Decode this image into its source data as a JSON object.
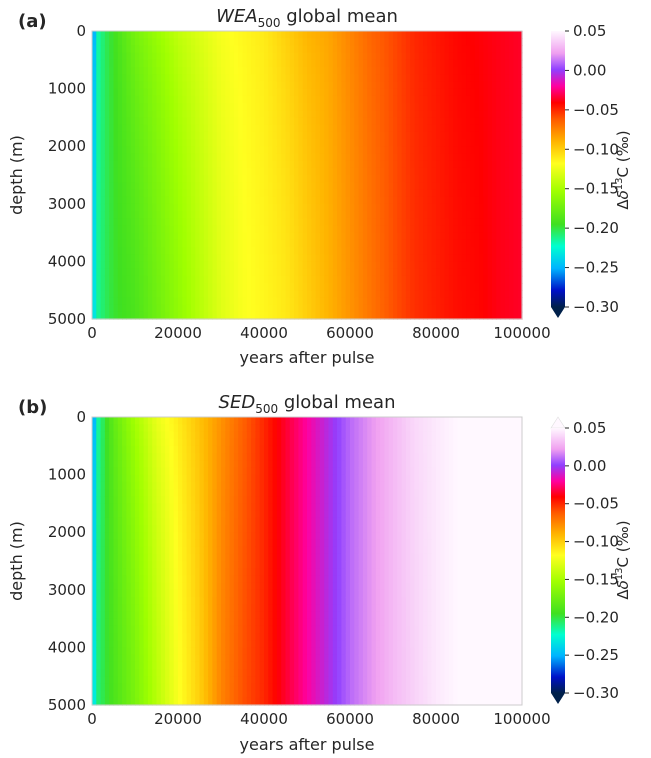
{
  "chart_data": [
    {
      "type": "heatmap",
      "panel_label": "(a)",
      "title_italic": "WEA",
      "title_subscript": "500",
      "title_rest": " global mean",
      "xlabel": "years after pulse",
      "ylabel": "depth (m)",
      "xlim": [
        0,
        100000
      ],
      "ylim": [
        5000,
        0
      ],
      "x_ticks": [
        "0",
        "20000",
        "40000",
        "60000",
        "80000",
        "100000"
      ],
      "y_ticks": [
        "0",
        "1000",
        "2000",
        "3000",
        "4000",
        "5000"
      ],
      "grid": false,
      "colorbar": {
        "label": "Δδ¹³C (‰)",
        "label_prefix": "Δ",
        "label_delta": "δ",
        "label_sup": "13",
        "label_suffix": "C (‰)",
        "vmin": -0.3,
        "vmax": 0.05,
        "ticks": [
          "0.05",
          "0.00",
          "−0.05",
          "−0.10",
          "−0.15",
          "−0.20",
          "−0.25",
          "−0.30"
        ],
        "extend": "min"
      },
      "field": {
        "description_values": "anomaly at surface (depth 0) and bottom (depth 5000) vs time",
        "x": [
          0,
          1000,
          3000,
          5000,
          10000,
          15000,
          20000,
          25000,
          30000,
          35000,
          40000,
          45000,
          50000,
          55000,
          60000,
          65000,
          70000,
          75000,
          80000,
          85000,
          90000,
          95000,
          100000
        ],
        "surface": [
          -0.28,
          -0.22,
          -0.205,
          -0.195,
          -0.17,
          -0.155,
          -0.14,
          -0.13,
          -0.12,
          -0.115,
          -0.11,
          -0.1,
          -0.09,
          -0.085,
          -0.075,
          -0.065,
          -0.058,
          -0.05,
          -0.046,
          -0.042,
          -0.04,
          -0.038,
          -0.036
        ],
        "bottom": [
          -0.25,
          -0.215,
          -0.205,
          -0.198,
          -0.19,
          -0.175,
          -0.16,
          -0.145,
          -0.13,
          -0.12,
          -0.115,
          -0.11,
          -0.1,
          -0.09,
          -0.08,
          -0.07,
          -0.06,
          -0.052,
          -0.048,
          -0.044,
          -0.042,
          -0.038,
          -0.036
        ]
      }
    },
    {
      "type": "heatmap",
      "panel_label": "(b)",
      "title_italic": "SED",
      "title_subscript": "500",
      "title_rest": " global mean",
      "xlabel": "years after pulse",
      "ylabel": "depth (m)",
      "xlim": [
        0,
        100000
      ],
      "ylim": [
        5000,
        0
      ],
      "x_ticks": [
        "0",
        "20000",
        "40000",
        "60000",
        "80000",
        "100000"
      ],
      "y_ticks": [
        "0",
        "1000",
        "2000",
        "3000",
        "4000",
        "5000"
      ],
      "grid": false,
      "colorbar": {
        "label": "Δδ¹³C (‰)",
        "label_prefix": "Δ",
        "label_delta": "δ",
        "label_sup": "13",
        "label_suffix": "C (‰)",
        "vmin": -0.3,
        "vmax": 0.05,
        "ticks": [
          "0.05",
          "0.00",
          "−0.05",
          "−0.10",
          "−0.15",
          "−0.20",
          "−0.25",
          "−0.30"
        ],
        "extend": "both"
      },
      "field": {
        "description_values": "anomaly at surface (depth 0) and bottom (depth 5000) vs time",
        "x": [
          0,
          1000,
          3000,
          5000,
          10000,
          15000,
          20000,
          25000,
          30000,
          35000,
          40000,
          45000,
          50000,
          55000,
          60000,
          65000,
          70000,
          75000,
          80000,
          85000,
          90000,
          95000,
          100000
        ],
        "surface": [
          -0.28,
          -0.22,
          -0.2,
          -0.18,
          -0.15,
          -0.125,
          -0.11,
          -0.095,
          -0.08,
          -0.065,
          -0.05,
          -0.035,
          -0.02,
          -0.005,
          0.01,
          0.02,
          0.03,
          0.04,
          0.045,
          0.05,
          0.05,
          0.05,
          0.05
        ],
        "bottom": [
          -0.25,
          -0.21,
          -0.2,
          -0.19,
          -0.17,
          -0.145,
          -0.12,
          -0.1,
          -0.075,
          -0.06,
          -0.05,
          -0.035,
          -0.02,
          -0.005,
          0.01,
          0.02,
          0.03,
          0.038,
          0.045,
          0.05,
          0.055,
          0.058,
          0.06
        ]
      }
    }
  ]
}
